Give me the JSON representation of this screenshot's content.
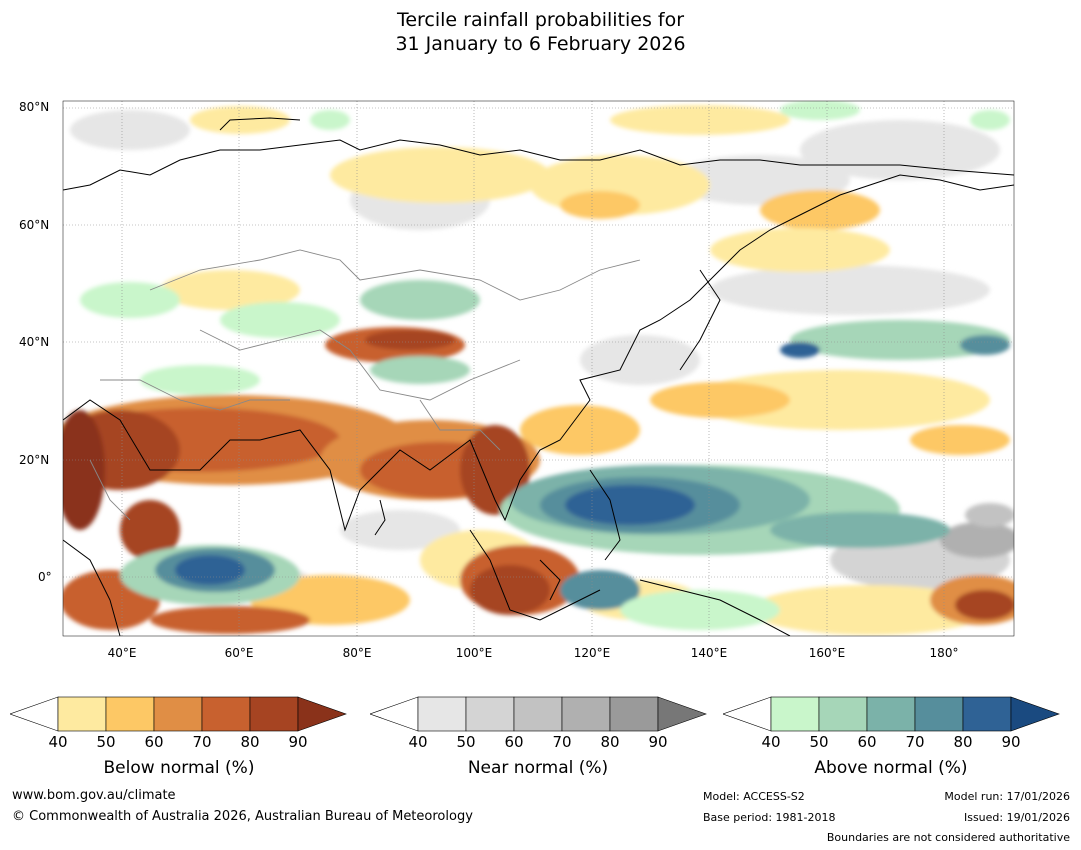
{
  "title": {
    "line1": "Tercile rainfall probabilities for",
    "line2": "31 January to 6 February 2026"
  },
  "map": {
    "lat_labels": [
      "80°N",
      "60°N",
      "40°N",
      "20°N",
      "0°"
    ],
    "lon_labels": [
      "40°E",
      "60°E",
      "80°E",
      "100°E",
      "120°E",
      "140°E",
      "160°E",
      "180°"
    ],
    "colors": {
      "ocean_background": "#ffffff",
      "coastline": "#000000",
      "border": "#888888"
    }
  },
  "colorbars": {
    "below": {
      "title": "Below normal (%)",
      "ticks": [
        "40",
        "50",
        "60",
        "70",
        "80",
        "90"
      ],
      "colors": [
        "#ffffff",
        "#feeaa0",
        "#fdc865",
        "#e08e45",
        "#c8612f",
        "#a64422",
        "#8a321a"
      ]
    },
    "near": {
      "title": "Near normal (%)",
      "ticks": [
        "40",
        "50",
        "60",
        "70",
        "80",
        "90"
      ],
      "colors": [
        "#ffffff",
        "#e6e6e6",
        "#d4d4d4",
        "#c2c2c2",
        "#b0b0b0",
        "#9a9a9a",
        "#777777"
      ]
    },
    "above": {
      "title": "Above normal (%)",
      "ticks": [
        "40",
        "50",
        "60",
        "70",
        "80",
        "90"
      ],
      "colors": [
        "#ffffff",
        "#c9f6cb",
        "#a6d6b8",
        "#7bb2a9",
        "#568e9c",
        "#2f6295",
        "#1a4a80"
      ]
    }
  },
  "footer": {
    "website": "www.bom.gov.au/climate",
    "copyright": "© Commonwealth of Australia 2026, Australian Bureau of Meteorology",
    "model": "Model: ACCESS-S2",
    "base_period": "Base period: 1981-2018",
    "model_run": "Model run: 17/01/2026",
    "issued": "Issued: 19/01/2026",
    "boundaries": "Boundaries are not considered authoritative"
  }
}
